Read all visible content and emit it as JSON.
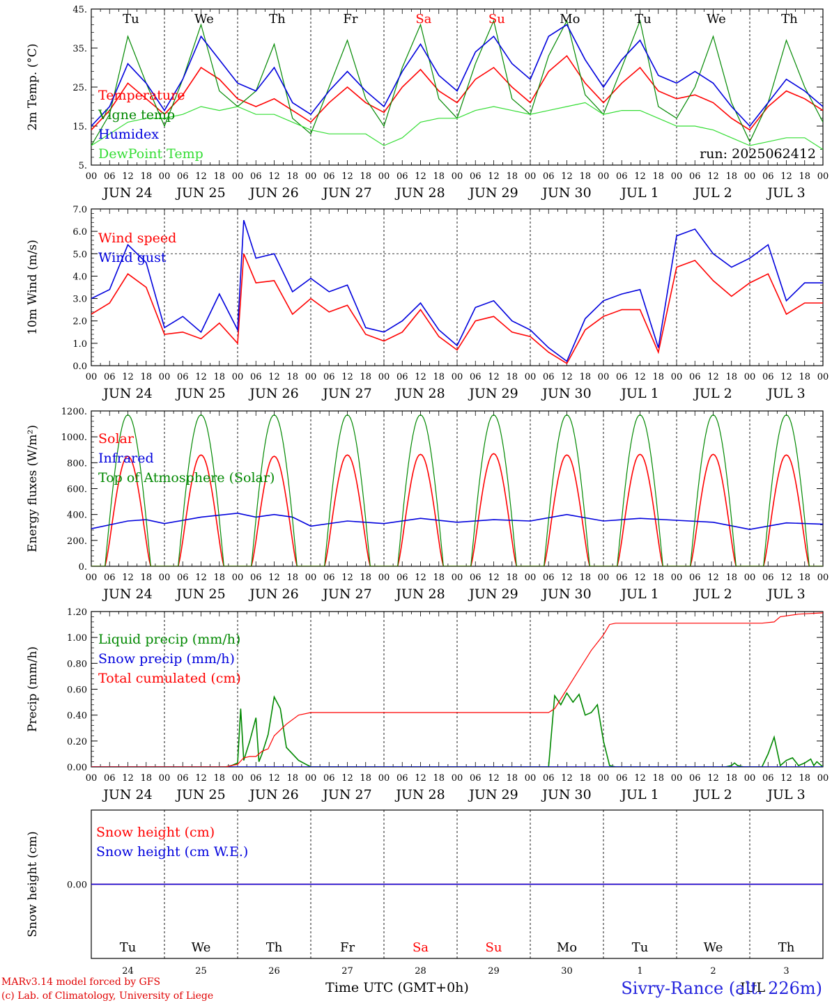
{
  "weekdays": [
    "Tu",
    "We",
    "Th",
    "Fr",
    "Sa",
    "Su",
    "Mo",
    "Tu",
    "We",
    "Th"
  ],
  "weekday_colors": [
    "#000000",
    "#000000",
    "#000000",
    "#000000",
    "#ff0000",
    "#ff0000",
    "#000000",
    "#000000",
    "#000000",
    "#000000"
  ],
  "hour_ticks": [
    "00",
    "06",
    "12",
    "18"
  ],
  "final_hour_tick": "00",
  "date_labels": [
    "JUN 24",
    "JUN 25",
    "JUN 26",
    "JUN 27",
    "JUN 28",
    "JUN 29",
    "JUN 30",
    "JUL  1",
    "JUL  2",
    "JUL  3"
  ],
  "bottom_day_numbers": [
    "24",
    "25",
    "26",
    "27",
    "28",
    "29",
    "30",
    "1",
    "2",
    "3"
  ],
  "run_label": "run: 2025062412",
  "xlabel_a": "Time UTC (GMT+0h)",
  "xlabel_b": "JUL",
  "footer": {
    "line1": "MARv3.14 model forced by GFS",
    "line2": "(c) Lab. of Climatology, University of Liege",
    "site": "Sivry-Rance (alt. 226m)"
  },
  "chart_data": [
    {
      "id": "temp",
      "type": "line",
      "ylabel": "2m Temp. (°C)",
      "ylim": [
        5,
        45
      ],
      "yticks": [
        5,
        15,
        25,
        35,
        45
      ],
      "ytick_labels": [
        "5.",
        "15.",
        "25.",
        "35.",
        "45."
      ],
      "x_unit": "hours since JUN 24 00 UTC",
      "series": [
        {
          "name": "Temperature",
          "color": "#ff0000",
          "x": [
            0,
            6,
            12,
            18,
            24,
            30,
            36,
            42,
            48,
            54,
            60,
            66,
            72,
            78,
            84,
            90,
            96,
            102,
            108,
            114,
            120,
            126,
            132,
            138,
            144,
            150,
            156,
            162,
            168,
            174,
            180,
            186,
            192,
            198,
            204,
            210,
            216,
            222,
            228,
            234,
            240
          ],
          "values": [
            14,
            19,
            26,
            22,
            18,
            23,
            30,
            27,
            22,
            20,
            22,
            19,
            16,
            21,
            25,
            21,
            18.5,
            25,
            29.5,
            24,
            21,
            27,
            30,
            25,
            21,
            29,
            33,
            26,
            21,
            26,
            30,
            24,
            22,
            23,
            21,
            17,
            14,
            20,
            24,
            22,
            19
          ]
        },
        {
          "name": "Vigne temp",
          "color": "#008800",
          "x": [
            0,
            6,
            12,
            18,
            24,
            30,
            36,
            42,
            48,
            54,
            60,
            66,
            72,
            78,
            84,
            90,
            96,
            102,
            108,
            114,
            120,
            126,
            132,
            138,
            144,
            150,
            156,
            162,
            168,
            174,
            180,
            186,
            192,
            198,
            204,
            210,
            216,
            222,
            228,
            234,
            240
          ],
          "values": [
            10,
            18,
            38,
            26,
            15,
            27,
            41,
            24,
            20,
            24,
            36,
            17,
            13,
            25,
            37,
            22,
            15,
            30,
            41,
            22,
            17,
            31,
            42,
            22,
            18,
            33,
            42,
            23,
            18,
            30,
            42,
            20,
            17,
            25,
            38,
            21,
            11,
            21,
            37,
            25,
            16
          ]
        },
        {
          "name": "Humidex",
          "color": "#0000dd",
          "x": [
            0,
            6,
            12,
            18,
            24,
            30,
            36,
            42,
            48,
            54,
            60,
            66,
            72,
            78,
            84,
            90,
            96,
            102,
            108,
            114,
            120,
            126,
            132,
            138,
            144,
            150,
            156,
            162,
            168,
            174,
            180,
            186,
            192,
            198,
            204,
            210,
            216,
            222,
            228,
            234,
            240
          ],
          "values": [
            15,
            20,
            31,
            26,
            19,
            27,
            38,
            32,
            26,
            24,
            30,
            21,
            18,
            24,
            29,
            24,
            20,
            29,
            36,
            28,
            24,
            34,
            38,
            31,
            27,
            38,
            41,
            32,
            25,
            32,
            37,
            28,
            26,
            29,
            26,
            20,
            15,
            21,
            27,
            24,
            20
          ]
        },
        {
          "name": "DewPoint Temp",
          "color": "#33dd33",
          "x": [
            0,
            6,
            12,
            18,
            24,
            30,
            36,
            42,
            48,
            54,
            60,
            66,
            72,
            78,
            84,
            90,
            96,
            102,
            108,
            114,
            120,
            126,
            132,
            138,
            144,
            150,
            156,
            162,
            168,
            174,
            180,
            186,
            192,
            198,
            204,
            210,
            216,
            222,
            228,
            234,
            240
          ],
          "values": [
            10,
            13,
            16,
            17,
            17,
            18,
            20,
            19,
            20,
            18,
            18,
            16,
            14,
            13,
            13,
            13,
            10,
            12,
            16,
            17,
            17,
            19,
            20,
            19,
            18,
            19,
            20,
            21,
            18,
            19,
            19,
            17,
            15,
            15,
            14,
            12,
            10,
            11,
            12,
            12,
            9
          ]
        }
      ]
    },
    {
      "id": "wind",
      "type": "line",
      "ylabel": "10m Wind (m/s)",
      "ylim": [
        0,
        7
      ],
      "yticks": [
        0,
        1,
        2,
        3,
        4,
        5,
        6,
        7
      ],
      "ytick_labels": [
        "0.0",
        "1.0",
        "2.0",
        "3.0",
        "4.0",
        "5.0",
        "6.0",
        "7.0"
      ],
      "hline": 5,
      "x_unit": "hours since JUN 24 00 UTC",
      "series": [
        {
          "name": "Wind speed",
          "color": "#ff0000",
          "x": [
            0,
            6,
            12,
            18,
            24,
            30,
            36,
            42,
            48,
            50,
            54,
            60,
            66,
            72,
            78,
            84,
            90,
            96,
            102,
            108,
            114,
            120,
            126,
            132,
            138,
            144,
            150,
            156,
            162,
            168,
            174,
            180,
            186,
            192,
            198,
            204,
            210,
            216,
            222,
            228,
            234,
            240
          ],
          "values": [
            2.3,
            2.8,
            4.1,
            3.5,
            1.4,
            1.5,
            1.2,
            1.9,
            1.0,
            5.0,
            3.7,
            3.8,
            2.3,
            3.0,
            2.4,
            2.7,
            1.4,
            1.1,
            1.5,
            2.5,
            1.3,
            0.7,
            2.0,
            2.2,
            1.5,
            1.3,
            0.6,
            0.1,
            1.6,
            2.2,
            2.5,
            2.5,
            0.6,
            4.4,
            4.7,
            3.8,
            3.1,
            3.7,
            4.1,
            2.3,
            2.8,
            2.8
          ]
        },
        {
          "name": "Wind gust",
          "color": "#0000dd",
          "x": [
            0,
            6,
            12,
            18,
            24,
            30,
            36,
            42,
            48,
            50,
            54,
            60,
            66,
            72,
            78,
            84,
            90,
            96,
            102,
            108,
            114,
            120,
            126,
            132,
            138,
            144,
            150,
            156,
            162,
            168,
            174,
            180,
            186,
            192,
            198,
            204,
            210,
            216,
            222,
            228,
            234,
            240
          ],
          "values": [
            3.0,
            3.4,
            5.4,
            4.6,
            1.7,
            2.2,
            1.5,
            3.2,
            1.6,
            6.5,
            4.8,
            5.0,
            3.3,
            3.9,
            3.3,
            3.6,
            1.7,
            1.5,
            2.0,
            2.8,
            1.6,
            0.9,
            2.6,
            2.9,
            2.0,
            1.6,
            0.8,
            0.2,
            2.1,
            2.9,
            3.2,
            3.4,
            0.8,
            5.8,
            6.1,
            5.0,
            4.4,
            4.8,
            5.4,
            2.9,
            3.7,
            3.7
          ]
        }
      ]
    },
    {
      "id": "energy",
      "type": "line",
      "ylabel": "Energy fluxes (W/m²)",
      "ylim": [
        0,
        1200
      ],
      "yticks": [
        0,
        200,
        400,
        600,
        800,
        1000,
        1200
      ],
      "ytick_labels": [
        "0.",
        "200.",
        "400.",
        "600.",
        "800.",
        "1000.",
        "1200."
      ],
      "x_unit": "hours since JUN 24 00 UTC",
      "series": [
        {
          "name": "Solar",
          "color": "#ff0000",
          "daily_peak": [
            850,
            860,
            850,
            860,
            865,
            870,
            860,
            865,
            865,
            860
          ]
        },
        {
          "name": "Infrared",
          "color": "#0000dd",
          "x": [
            0,
            12,
            18,
            24,
            36,
            48,
            54,
            60,
            66,
            72,
            84,
            96,
            108,
            120,
            132,
            144,
            156,
            168,
            180,
            192,
            204,
            216,
            228,
            240
          ],
          "values": [
            290,
            350,
            360,
            330,
            380,
            410,
            380,
            400,
            380,
            310,
            350,
            330,
            370,
            340,
            360,
            350,
            400,
            350,
            370,
            355,
            340,
            285,
            335,
            325
          ]
        },
        {
          "name": "Top of Atmosphere (Solar)",
          "color": "#008800",
          "daily_peak": [
            1170,
            1170,
            1170,
            1170,
            1170,
            1170,
            1170,
            1170,
            1170,
            1170
          ]
        }
      ]
    },
    {
      "id": "precip",
      "type": "line",
      "ylabel": "Precip (mm/h)",
      "ylim": [
        0,
        1.2
      ],
      "yticks": [
        0,
        0.2,
        0.4,
        0.6,
        0.8,
        1.0,
        1.2
      ],
      "ytick_labels": [
        "0.00",
        "0.20",
        "0.40",
        "0.60",
        "0.80",
        "1.00",
        "1.20"
      ],
      "x_unit": "hours since JUN 24 00 UTC",
      "series": [
        {
          "name": "Liquid precip (mm/h)",
          "color": "#008800",
          "x": [
            0,
            44,
            46,
            48,
            49,
            50,
            52,
            54,
            55,
            56,
            58,
            60,
            62,
            64,
            68,
            72,
            150,
            152,
            154,
            156,
            158,
            160,
            162,
            164,
            166,
            168,
            170,
            172,
            208,
            210,
            211,
            212,
            214,
            216,
            218,
            220,
            222,
            224,
            226,
            228,
            230,
            232,
            234,
            236,
            237,
            238,
            240
          ],
          "values": [
            0,
            0,
            0.01,
            0.03,
            0.45,
            0.05,
            0.2,
            0.38,
            0.04,
            0.1,
            0.25,
            0.54,
            0.45,
            0.15,
            0.05,
            0,
            0,
            0.55,
            0.48,
            0.57,
            0.5,
            0.56,
            0.4,
            0.42,
            0.48,
            0.2,
            0.01,
            0,
            0,
            0.01,
            0.03,
            0.01,
            0,
            0,
            0,
            0,
            0.1,
            0.23,
            0.01,
            0.05,
            0.07,
            0.01,
            0.03,
            0.06,
            0.01,
            0.04,
            0
          ]
        },
        {
          "name": "Snow precip (mm/h)",
          "color": "#0000dd",
          "x": [
            0,
            240
          ],
          "values": [
            0,
            0
          ]
        },
        {
          "name": "Total cumulated (cm)",
          "color": "#ff0000",
          "x": [
            0,
            44,
            48,
            50,
            52,
            54,
            56,
            58,
            60,
            64,
            68,
            72,
            78,
            150,
            152,
            156,
            160,
            164,
            168,
            170,
            172,
            210,
            214,
            216,
            220,
            224,
            226,
            232,
            240
          ],
          "values": [
            0,
            0,
            0.02,
            0.07,
            0.08,
            0.08,
            0.12,
            0.14,
            0.24,
            0.33,
            0.4,
            0.42,
            0.42,
            0.42,
            0.45,
            0.6,
            0.75,
            0.9,
            1.02,
            1.1,
            1.11,
            1.11,
            1.11,
            1.11,
            1.11,
            1.12,
            1.16,
            1.18,
            1.19
          ]
        }
      ]
    },
    {
      "id": "snow",
      "type": "line",
      "ylabel": "Snow height (cm)",
      "ylim": [
        -1,
        1
      ],
      "yticks": [
        0
      ],
      "ytick_labels": [
        "0.00"
      ],
      "x_unit": "hours since JUN 24 00 UTC",
      "series": [
        {
          "name": "Snow height (cm)",
          "color": "#ff0000",
          "x": [
            0,
            240
          ],
          "values": [
            0,
            0
          ]
        },
        {
          "name": "Snow height (cm W.E.)",
          "color": "#0000dd",
          "x": [
            0,
            240
          ],
          "values": [
            0,
            0
          ]
        }
      ]
    }
  ]
}
